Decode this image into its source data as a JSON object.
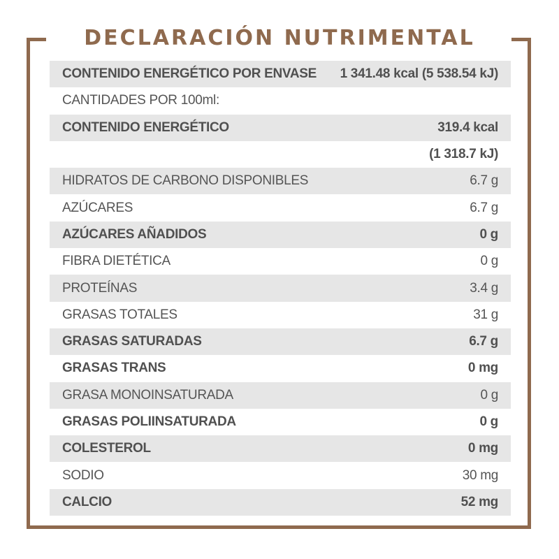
{
  "title": "DECLARACIÓN NUTRIMENTAL",
  "colors": {
    "accent": "#8f6a4e",
    "row_shade": "#e6e6e6",
    "text": "#555555"
  },
  "rows": [
    {
      "label": "CONTENIDO ENERGÉTICO POR ENVASE",
      "value": "1 341.48 kcal (5 538.54 kJ)",
      "shade": true,
      "bold": true
    },
    {
      "label": "CANTIDADES POR 100ml:",
      "value": "",
      "shade": false,
      "bold": false
    },
    {
      "label": "CONTENIDO ENERGÉTICO",
      "value": "319.4 kcal",
      "shade": true,
      "bold": true
    },
    {
      "label": "",
      "value": "(1 318.7 kJ)",
      "shade": false,
      "bold": true
    },
    {
      "label": "HIDRATOS DE CARBONO DISPONIBLES",
      "value": "6.7 g",
      "shade": true,
      "bold": false
    },
    {
      "label": "AZÚCARES",
      "value": "6.7 g",
      "shade": false,
      "bold": false
    },
    {
      "label": "AZÚCARES AÑADIDOS",
      "value": "0 g",
      "shade": true,
      "bold": true
    },
    {
      "label": "FIBRA DIETÉTICA",
      "value": "0 g",
      "shade": false,
      "bold": false
    },
    {
      "label": "PROTEÍNAS",
      "value": "3.4 g",
      "shade": true,
      "bold": false
    },
    {
      "label": "GRASAS TOTALES",
      "value": "31 g",
      "shade": false,
      "bold": false
    },
    {
      "label": "GRASAS SATURADAS",
      "value": "6.7 g",
      "shade": true,
      "bold": true
    },
    {
      "label": "GRASAS TRANS",
      "value": "0 mg",
      "shade": false,
      "bold": true
    },
    {
      "label": "GRASA MONOINSATURADA",
      "value": "0 g",
      "shade": true,
      "bold": false
    },
    {
      "label": "GRASAS POLIINSATURADA",
      "value": "0 g",
      "shade": false,
      "bold": true
    },
    {
      "label": "COLESTEROL",
      "value": "0 mg",
      "shade": true,
      "bold": true
    },
    {
      "label": "SODIO",
      "value": "30 mg",
      "shade": false,
      "bold": false
    },
    {
      "label": "CALCIO",
      "value": "52 mg",
      "shade": true,
      "bold": true
    }
  ]
}
